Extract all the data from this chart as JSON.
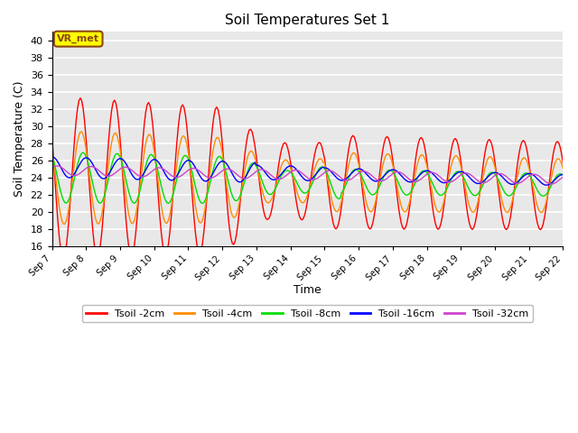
{
  "title": "Soil Temperatures Set 1",
  "xlabel": "Time",
  "ylabel": "Soil Temperature (C)",
  "ylim": [
    16,
    41
  ],
  "yticks": [
    16,
    18,
    20,
    22,
    24,
    26,
    28,
    30,
    32,
    34,
    36,
    38,
    40
  ],
  "colors": {
    "Tsoil -2cm": "#FF0000",
    "Tsoil -4cm": "#FF8C00",
    "Tsoil -8cm": "#00DD00",
    "Tsoil -16cm": "#0000FF",
    "Tsoil -32cm": "#CC44CC"
  },
  "plot_bg": "#E8E8E8",
  "fig_bg": "#FFFFFF",
  "annotation_text": "VR_met",
  "annotation_bg": "#FFFF00",
  "annotation_border": "#8B4513",
  "n_days": 15,
  "start_day": 7,
  "end_day": 22
}
